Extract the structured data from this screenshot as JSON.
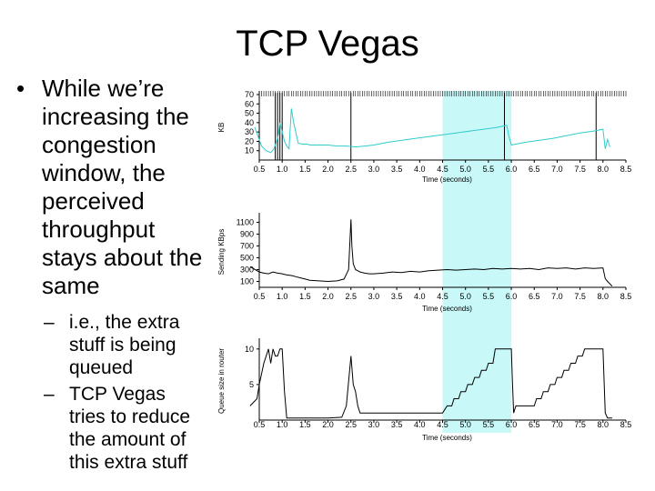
{
  "slide": {
    "title": "TCP Vegas",
    "bullet_marker": "•",
    "sub_marker": "–",
    "bullet_lines": [
      "While we’re",
      "increasing the",
      "congestion",
      "window, the",
      "perceived",
      "throughput",
      "stays about the",
      "same"
    ],
    "sub1_lines": [
      "i.e., the extra",
      "stuff is being",
      "queued"
    ],
    "sub2_lines": [
      "TCP Vegas",
      "tries to reduce",
      "the amount of",
      "this extra stuff"
    ]
  },
  "colors": {
    "highlight": "#c8f8f8",
    "cwnd": "#33cccc",
    "trace": "#000000"
  },
  "chart_data": [
    {
      "type": "line",
      "ylabel": "KB",
      "xlabel": "Time (seconds)",
      "xlim": [
        0.5,
        8.5
      ],
      "ylim": [
        0,
        70
      ],
      "xticks": [
        0.5,
        1.0,
        1.5,
        2.0,
        2.5,
        3.0,
        3.5,
        4.0,
        4.5,
        5.0,
        5.5,
        6.0,
        6.5,
        7.0,
        7.5,
        8.0,
        8.5
      ],
      "xtick_labels": [
        "0.5",
        "1.0",
        "1.5",
        "2.0",
        "2.5",
        "3.0",
        "3.5",
        "4.0",
        "4.5",
        "5.0",
        "5.5",
        "6.0",
        "6.5",
        "7.0",
        "7.5",
        "8.0",
        "8.5"
      ],
      "yticks": [
        10,
        20,
        30,
        40,
        50,
        60,
        70
      ],
      "ytick_labels": [
        "10",
        "20",
        "30",
        "40",
        "50",
        "60",
        "70"
      ],
      "highlight_x": [
        4.5,
        6.0
      ],
      "series": [
        {
          "x": [
            0.4,
            0.55,
            0.65,
            0.75,
            0.82,
            0.88,
            0.92,
            0.95,
            1.0,
            1.05,
            1.1,
            1.15,
            1.2,
            1.25,
            1.35,
            1.45,
            1.5,
            1.55,
            1.6,
            1.8,
            2.0,
            2.2,
            2.4,
            2.6,
            2.8,
            3.0,
            3.3,
            3.6,
            3.9,
            4.2,
            4.5,
            4.8,
            5.1,
            5.4,
            5.7,
            5.9,
            5.95,
            6.0,
            6.3,
            6.6,
            6.9,
            7.2,
            7.5,
            7.8,
            7.9,
            8.0,
            8.05,
            8.1,
            8.15
          ],
          "y": [
            35,
            15,
            10,
            8,
            12,
            20,
            28,
            40,
            30,
            20,
            15,
            12,
            55,
            40,
            18,
            17,
            17,
            17,
            16,
            16,
            16,
            15,
            15,
            14,
            15,
            16,
            19,
            21,
            23,
            25,
            27,
            29,
            31,
            33,
            35,
            37,
            25,
            16,
            19,
            21,
            23,
            26,
            29,
            31,
            32,
            33,
            12,
            22,
            14
          ]
        }
      ],
      "spike_marks_x": [
        0.85,
        0.9,
        0.95,
        1.0,
        2.5,
        5.85,
        7.85
      ]
    },
    {
      "type": "line",
      "ylabel": "Sending KBps",
      "xlabel": "Time (seconds)",
      "xlim": [
        0.5,
        8.5
      ],
      "ylim": [
        0,
        1200
      ],
      "xticks": [
        0.5,
        1.0,
        1.5,
        2.0,
        2.5,
        3.0,
        3.5,
        4.0,
        4.5,
        5.0,
        5.5,
        6.0,
        6.5,
        7.0,
        7.5,
        8.0,
        8.5
      ],
      "xtick_labels": [
        "0.5",
        "1.0",
        "1.5",
        "2.0",
        "2.5",
        "3.0",
        "3.5",
        "4.0",
        "4.5",
        "5.0",
        "5.5",
        "6.0",
        "6.5",
        "7.0",
        "7.5",
        "8.0",
        "8.5"
      ],
      "yticks": [
        100,
        300,
        500,
        700,
        900,
        1100
      ],
      "ytick_labels": [
        "100",
        "300",
        "500",
        "700",
        "900",
        "1100"
      ],
      "highlight_x": [
        4.5,
        6.0
      ],
      "series": [
        {
          "x": [
            0.3,
            0.5,
            0.6,
            0.7,
            0.8,
            0.9,
            1.0,
            1.1,
            1.2,
            1.3,
            1.4,
            1.5,
            1.6,
            1.8,
            2.0,
            2.2,
            2.35,
            2.45,
            2.5,
            2.52,
            2.55,
            2.6,
            2.65,
            2.7,
            2.8,
            2.9,
            3.0,
            3.2,
            3.4,
            3.6,
            3.8,
            4.0,
            4.2,
            4.4,
            4.6,
            4.8,
            5.0,
            5.2,
            5.4,
            5.6,
            5.8,
            6.0,
            6.2,
            6.4,
            6.6,
            6.8,
            7.0,
            7.2,
            7.4,
            7.6,
            7.8,
            8.0,
            8.05,
            8.1,
            8.2
          ],
          "y": [
            350,
            260,
            240,
            230,
            260,
            240,
            230,
            210,
            200,
            180,
            160,
            140,
            120,
            110,
            100,
            110,
            140,
            300,
            1150,
            700,
            400,
            300,
            280,
            260,
            240,
            230,
            230,
            240,
            260,
            250,
            270,
            260,
            280,
            290,
            300,
            290,
            300,
            310,
            300,
            320,
            310,
            320,
            310,
            320,
            300,
            330,
            320,
            330,
            310,
            330,
            320,
            330,
            150,
            100,
            20
          ]
        }
      ]
    },
    {
      "type": "line",
      "ylabel": "Queue size in router",
      "xlabel": "Time (seconds)",
      "xlim": [
        0.5,
        8.5
      ],
      "ylim": [
        0,
        11
      ],
      "xticks": [
        0.5,
        1.0,
        1.5,
        2.0,
        2.5,
        3.0,
        3.5,
        4.0,
        4.5,
        5.0,
        5.5,
        6.0,
        6.5,
        7.0,
        7.5,
        8.0,
        8.5
      ],
      "xtick_labels": [
        "0.5",
        "1.0",
        "1.5",
        "2.0",
        "2.5",
        "3.0",
        "3.5",
        "4.0",
        "4.5",
        "5.0",
        "5.5",
        "6.0",
        "6.5",
        "7.0",
        "7.5",
        "8.0",
        "8.5"
      ],
      "yticks": [
        5,
        10
      ],
      "ytick_labels": [
        "5",
        "10"
      ],
      "highlight_x": [
        4.5,
        6.0
      ],
      "series": [
        {
          "x": [
            0.3,
            0.45,
            0.5,
            0.6,
            0.7,
            0.75,
            0.8,
            0.85,
            0.9,
            0.95,
            1.0,
            1.05,
            1.1,
            1.3,
            1.6,
            2.0,
            2.3,
            2.4,
            2.5,
            2.55,
            2.6,
            2.65,
            2.7,
            3.0,
            3.5,
            4.0,
            4.4,
            4.5,
            4.6,
            4.7,
            4.75,
            4.85,
            4.9,
            5.0,
            5.05,
            5.15,
            5.2,
            5.3,
            5.35,
            5.45,
            5.5,
            5.6,
            5.65,
            5.8,
            6.0,
            6.02,
            6.05,
            6.1,
            6.3,
            6.5,
            6.55,
            6.65,
            6.7,
            6.8,
            6.85,
            6.95,
            7.0,
            7.1,
            7.15,
            7.25,
            7.3,
            7.4,
            7.45,
            7.55,
            7.6,
            7.7,
            7.75,
            7.85,
            7.9,
            8.0,
            8.05,
            8.1,
            8.2
          ],
          "y": [
            2,
            3,
            5,
            8,
            10,
            8,
            10,
            9,
            9,
            10,
            10,
            4,
            0.3,
            0.3,
            0.3,
            0.3,
            0.4,
            2,
            9,
            5,
            4,
            2,
            1,
            1,
            1,
            1,
            1,
            1,
            2,
            2,
            3,
            3,
            4,
            4,
            5,
            5,
            6,
            6,
            7,
            7,
            8,
            8,
            10,
            10,
            10,
            6,
            1,
            2,
            2,
            2,
            3,
            3,
            4,
            4,
            5,
            5,
            6,
            6,
            7,
            7,
            8,
            8,
            9,
            9,
            10,
            10,
            10,
            10,
            10,
            10,
            1,
            0.3,
            0.3
          ]
        }
      ]
    }
  ]
}
